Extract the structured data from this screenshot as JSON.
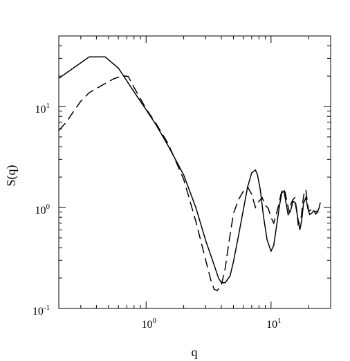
{
  "chart_data": {
    "type": "line",
    "title": "",
    "xlabel": "q",
    "ylabel": "S(q)",
    "xscale": "log",
    "yscale": "log",
    "xlim": [
      0.2,
      30
    ],
    "ylim": [
      0.1,
      50
    ],
    "grid": false,
    "x_ticks": [
      {
        "value": 1,
        "base": "10",
        "exp": "0"
      },
      {
        "value": 10,
        "base": "10",
        "exp": "1"
      }
    ],
    "y_ticks": [
      {
        "value": 0.1,
        "base": "10",
        "exp": "-1"
      },
      {
        "value": 1,
        "base": "10",
        "exp": "0"
      },
      {
        "value": 10,
        "base": "10",
        "exp": "1"
      }
    ],
    "series": [
      {
        "style": "solid",
        "x": [
          0.2,
          0.35,
          0.47,
          0.6,
          0.8,
          1.0,
          1.2,
          1.5,
          2.0,
          2.5,
          3.0,
          3.5,
          3.8,
          4.0,
          4.3,
          4.7,
          5.0,
          5.5,
          6.0,
          6.5,
          7.0,
          7.5,
          7.8,
          8.2,
          8.7,
          9.3,
          10.0,
          10.5,
          11.0,
          11.7,
          12.2,
          12.7,
          13.2,
          13.7,
          14.3,
          15.0,
          15.6,
          16.2,
          17.0,
          17.6,
          18.2,
          19.0,
          19.7,
          20.4,
          21.2,
          22.0,
          22.8,
          23.5,
          24.2,
          24.8
        ],
        "y": [
          19,
          31,
          31,
          24,
          14,
          9.3,
          6.6,
          4.1,
          2.1,
          1.0,
          0.47,
          0.27,
          0.2,
          0.18,
          0.18,
          0.21,
          0.29,
          0.53,
          0.95,
          1.6,
          2.2,
          2.35,
          2.1,
          1.5,
          0.82,
          0.48,
          0.37,
          0.42,
          0.62,
          1.05,
          1.4,
          1.45,
          1.1,
          0.85,
          0.92,
          1.15,
          1.12,
          0.85,
          0.6,
          0.75,
          1.1,
          1.25,
          0.98,
          0.85,
          0.88,
          0.93,
          0.86,
          0.9,
          0.98,
          1.12
        ]
      },
      {
        "style": "dashed",
        "x": [
          0.2,
          0.23,
          0.27,
          0.3,
          0.35,
          0.45,
          0.55,
          0.65,
          0.72,
          0.8,
          1.0,
          1.2,
          1.5,
          2.0,
          2.5,
          3.0,
          3.3,
          3.5,
          3.7,
          4.0,
          4.3,
          4.6,
          5.0,
          5.5,
          6.0,
          6.5,
          7.0,
          7.5,
          8.0,
          8.5,
          9.0,
          9.5,
          10.0,
          10.5,
          11.0,
          11.5,
          12.0,
          12.5,
          13.0,
          13.5,
          14.0,
          14.5,
          15.0,
          15.5,
          16.0,
          16.5,
          17.0,
          17.5,
          18.0,
          18.5,
          19.0,
          19.5,
          20.0,
          21.0,
          22.0,
          23.0,
          24.0
        ],
        "y": [
          5.8,
          7.0,
          9.4,
          11.3,
          13.7,
          16.4,
          18.8,
          20.2,
          19.8,
          15.5,
          9.5,
          6.8,
          4.3,
          1.9,
          0.73,
          0.3,
          0.19,
          0.155,
          0.15,
          0.17,
          0.25,
          0.45,
          0.87,
          1.2,
          1.45,
          1.6,
          1.35,
          1.0,
          1.15,
          1.25,
          1.05,
          0.98,
          0.8,
          0.7,
          0.85,
          1.05,
          1.35,
          1.55,
          1.4,
          1.1,
          0.9,
          1.1,
          1.2,
          1.25,
          0.97,
          0.68,
          0.72,
          0.82,
          1.15,
          1.45,
          1.5,
          1.15,
          0.92,
          0.95,
          0.9,
          0.92,
          0.9
        ]
      }
    ]
  }
}
